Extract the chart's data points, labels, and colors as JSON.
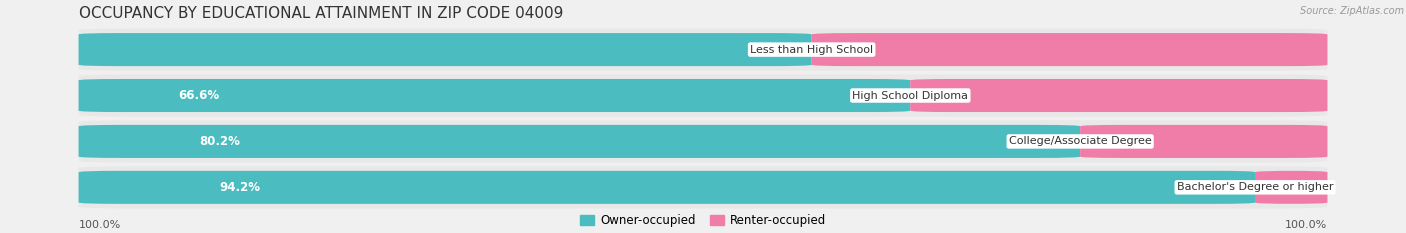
{
  "title": "OCCUPANCY BY EDUCATIONAL ATTAINMENT IN ZIP CODE 04009",
  "source": "Source: ZipAtlas.com",
  "categories": [
    "Less than High School",
    "High School Diploma",
    "College/Associate Degree",
    "Bachelor's Degree or higher"
  ],
  "owner_pct": [
    58.7,
    66.6,
    80.2,
    94.2
  ],
  "renter_pct": [
    41.3,
    33.4,
    19.8,
    5.8
  ],
  "owner_color": "#4bbdc0",
  "renter_color": "#f07ca8",
  "bg_color": "#f0f0f0",
  "row_bg_color": "#e8e8e8",
  "title_color": "#333333",
  "source_color": "#999999",
  "label_color_inside": "#ffffff",
  "label_color_outside": "#555555",
  "title_fontsize": 11,
  "label_fontsize": 8.5,
  "cat_fontsize": 8,
  "legend_fontsize": 8.5,
  "axis_label": "100.0%"
}
